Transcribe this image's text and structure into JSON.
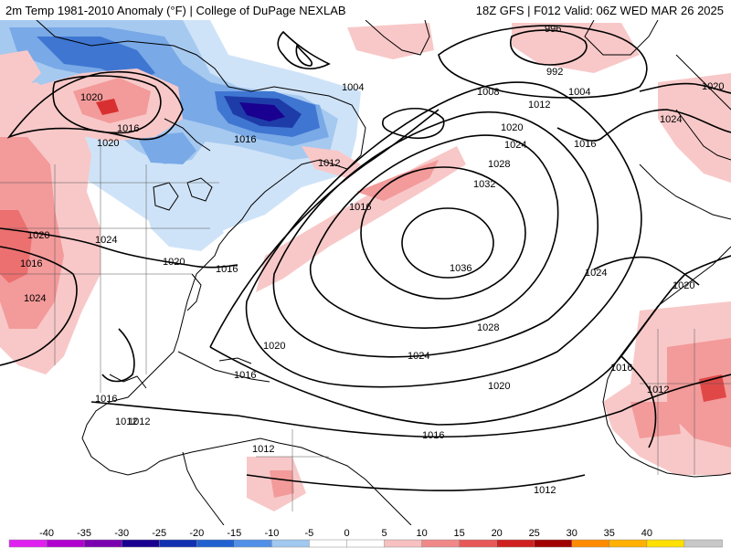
{
  "header": {
    "title_left": "2m Temp 1981-2010 Anomaly (°F) | College of DuPage NEXLAB",
    "title_right": "18Z GFS | F012 Valid: 06Z WED MAR 26 2025"
  },
  "isobar_labels": [
    "996",
    "992",
    "1004",
    "1008",
    "1004",
    "1012",
    "1020",
    "1024",
    "1016",
    "1020",
    "1024",
    "1028",
    "1032",
    "1036",
    "1016",
    "1016",
    "1012",
    "1016",
    "1020",
    "1020",
    "1024",
    "1028",
    "1024",
    "1020",
    "1016",
    "1020",
    "1016",
    "1012",
    "1016",
    "1012",
    "1012",
    "1016",
    "1020",
    "1024",
    "1020",
    "1012",
    "1012",
    "1016",
    "1020",
    "1024",
    "1016"
  ],
  "colorbar": {
    "ticks": [
      "-40",
      "-35",
      "-30",
      "-25",
      "-20",
      "-15",
      "-10",
      "-5",
      "0",
      "5",
      "10",
      "15",
      "20",
      "25",
      "30",
      "35",
      "40"
    ],
    "colors": [
      "#e020f0",
      "#b000d0",
      "#7a00b0",
      "#1a0090",
      "#1030b0",
      "#2060d0",
      "#5090e8",
      "#a0c8f0",
      "#ffffff",
      "#ffffff",
      "#f8c0c0",
      "#f08888",
      "#e85858",
      "#d02020",
      "#a00000",
      "#ff8c00",
      "#ffb000",
      "#ffe000",
      "#c8c8c8"
    ]
  }
}
